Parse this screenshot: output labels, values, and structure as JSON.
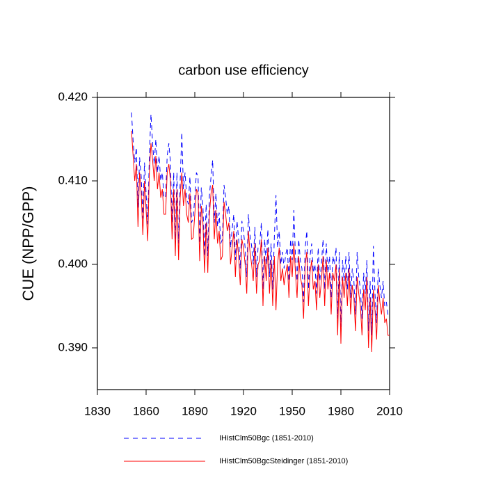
{
  "chart_data": {
    "type": "line",
    "title": "carbon use efficiency",
    "y_label": "CUE  (NPP/GPP)",
    "x": [
      1851,
      1852,
      1853,
      1854,
      1855,
      1856,
      1857,
      1858,
      1859,
      1860,
      1861,
      1862,
      1863,
      1864,
      1865,
      1866,
      1867,
      1868,
      1869,
      1870,
      1871,
      1872,
      1873,
      1874,
      1875,
      1876,
      1877,
      1878,
      1879,
      1880,
      1881,
      1882,
      1883,
      1884,
      1885,
      1886,
      1887,
      1888,
      1889,
      1890,
      1891,
      1892,
      1893,
      1894,
      1895,
      1896,
      1897,
      1898,
      1899,
      1900,
      1901,
      1902,
      1903,
      1904,
      1905,
      1906,
      1907,
      1908,
      1909,
      1910,
      1911,
      1912,
      1913,
      1914,
      1915,
      1916,
      1917,
      1918,
      1919,
      1920,
      1921,
      1922,
      1923,
      1924,
      1925,
      1926,
      1927,
      1928,
      1929,
      1930,
      1931,
      1932,
      1933,
      1934,
      1935,
      1936,
      1937,
      1938,
      1939,
      1940,
      1941,
      1942,
      1943,
      1944,
      1945,
      1946,
      1947,
      1948,
      1949,
      1950,
      1951,
      1952,
      1953,
      1954,
      1955,
      1956,
      1957,
      1958,
      1959,
      1960,
      1961,
      1962,
      1963,
      1964,
      1965,
      1966,
      1967,
      1968,
      1969,
      1970,
      1971,
      1972,
      1973,
      1974,
      1975,
      1976,
      1977,
      1978,
      1979,
      1980,
      1981,
      1982,
      1983,
      1984,
      1985,
      1986,
      1987,
      1988,
      1989,
      1990,
      1991,
      1992,
      1993,
      1994,
      1995,
      1996,
      1997,
      1998,
      1999,
      2000,
      2001,
      2002,
      2003,
      2004,
      2005,
      2006,
      2007,
      2008,
      2009,
      2010
    ],
    "series": [
      {
        "name": "IHistClm50Bgc (1851-2010)",
        "color": "#0000ff",
        "dash": true,
        "values": [
          0.4182,
          0.4148,
          0.4122,
          0.414,
          0.4068,
          0.4128,
          0.4105,
          0.4055,
          0.4122,
          0.4085,
          0.4048,
          0.413,
          0.418,
          0.4145,
          0.412,
          0.415,
          0.411,
          0.413,
          0.41,
          0.411,
          0.408,
          0.408,
          0.413,
          0.4145,
          0.4122,
          0.405,
          0.411,
          0.403,
          0.411,
          0.4025,
          0.41,
          0.4158,
          0.409,
          0.411,
          0.408,
          0.4072,
          0.4105,
          0.405,
          0.4055,
          0.408,
          0.411,
          0.4105,
          0.4025,
          0.4092,
          0.407,
          0.401,
          0.4072,
          0.401,
          0.4082,
          0.4105,
          0.4125,
          0.405,
          0.4085,
          0.4045,
          0.4062,
          0.4025,
          0.403,
          0.4095,
          0.408,
          0.406,
          0.407,
          0.402,
          0.4042,
          0.406,
          0.4005,
          0.4052,
          0.403,
          0.3995,
          0.4052,
          0.404,
          0.402,
          0.3985,
          0.406,
          0.4035,
          0.4022,
          0.4,
          0.4045,
          0.3985,
          0.4022,
          0.4025,
          0.405,
          0.397,
          0.403,
          0.4,
          0.4042,
          0.3985,
          0.4025,
          0.397,
          0.4032,
          0.4083,
          0.402,
          0.404,
          0.4,
          0.4015,
          0.3995,
          0.4012,
          0.402,
          0.398,
          0.403,
          0.4005,
          0.4065,
          0.401,
          0.398,
          0.403,
          0.4005,
          0.3995,
          0.3955,
          0.402,
          0.404,
          0.397,
          0.401,
          0.4025,
          0.399,
          0.4,
          0.3965,
          0.402,
          0.398,
          0.4,
          0.403,
          0.397,
          0.4025,
          0.399,
          0.401,
          0.396,
          0.401,
          0.4,
          0.402,
          0.3935,
          0.4015,
          0.3925,
          0.4005,
          0.398,
          0.401,
          0.397,
          0.4015,
          0.396,
          0.3995,
          0.398,
          0.394,
          0.4015,
          0.3985,
          0.397,
          0.3935,
          0.399,
          0.3965,
          0.4005,
          0.392,
          0.398,
          0.3915,
          0.4022,
          0.3965,
          0.393,
          0.3995,
          0.3975,
          0.396,
          0.398,
          0.395,
          0.3955,
          0.394,
          0.394
        ]
      },
      {
        "name": "IHistClm50BgcSteidinger (1851-2010)",
        "color": "#ff0000",
        "dash": false,
        "values": [
          0.416,
          0.413,
          0.41,
          0.412,
          0.4045,
          0.411,
          0.4085,
          0.4035,
          0.41,
          0.4065,
          0.4028,
          0.411,
          0.4145,
          0.4125,
          0.41,
          0.413,
          0.409,
          0.411,
          0.408,
          0.409,
          0.406,
          0.406,
          0.411,
          0.412,
          0.41,
          0.403,
          0.409,
          0.401,
          0.409,
          0.4005,
          0.408,
          0.411,
          0.407,
          0.409,
          0.406,
          0.405,
          0.4085,
          0.403,
          0.4032,
          0.406,
          0.409,
          0.4085,
          0.4004,
          0.407,
          0.405,
          0.399,
          0.405,
          0.399,
          0.406,
          0.4085,
          0.4095,
          0.403,
          0.4065,
          0.4025,
          0.404,
          0.4005,
          0.401,
          0.4075,
          0.406,
          0.404,
          0.405,
          0.4,
          0.402,
          0.404,
          0.3985,
          0.403,
          0.401,
          0.3975,
          0.403,
          0.402,
          0.4,
          0.3965,
          0.404,
          0.4015,
          0.4,
          0.398,
          0.4025,
          0.3965,
          0.4,
          0.4005,
          0.403,
          0.395,
          0.401,
          0.398,
          0.402,
          0.3965,
          0.4005,
          0.395,
          0.401,
          0.3945,
          0.4,
          0.402,
          0.398,
          0.3995,
          0.3975,
          0.399,
          0.4,
          0.396,
          0.401,
          0.3985,
          0.4025,
          0.399,
          0.396,
          0.401,
          0.3985,
          0.3975,
          0.3935,
          0.4,
          0.4015,
          0.395,
          0.399,
          0.4005,
          0.397,
          0.398,
          0.3945,
          0.4,
          0.396,
          0.398,
          0.401,
          0.395,
          0.4005,
          0.397,
          0.399,
          0.394,
          0.399,
          0.398,
          0.4,
          0.3915,
          0.3995,
          0.3905,
          0.3985,
          0.396,
          0.399,
          0.395,
          0.3995,
          0.394,
          0.3975,
          0.396,
          0.392,
          0.3985,
          0.3965,
          0.395,
          0.3915,
          0.397,
          0.3945,
          0.3985,
          0.39,
          0.396,
          0.3895,
          0.397,
          0.3945,
          0.391,
          0.3975,
          0.3955,
          0.394,
          0.396,
          0.393,
          0.3935,
          0.3915,
          0.3915
        ]
      }
    ],
    "xlim": [
      1830,
      2010
    ],
    "xticks": [
      1830,
      1860,
      1890,
      1920,
      1950,
      1980,
      2010
    ],
    "ylim": [
      0.385,
      0.42
    ],
    "yticks": [
      {
        "value": 0.39,
        "label": "0.390"
      },
      {
        "value": 0.4,
        "label": "0.400"
      },
      {
        "value": 0.41,
        "label": "0.410"
      },
      {
        "value": 0.42,
        "label": "0.420"
      }
    ]
  }
}
